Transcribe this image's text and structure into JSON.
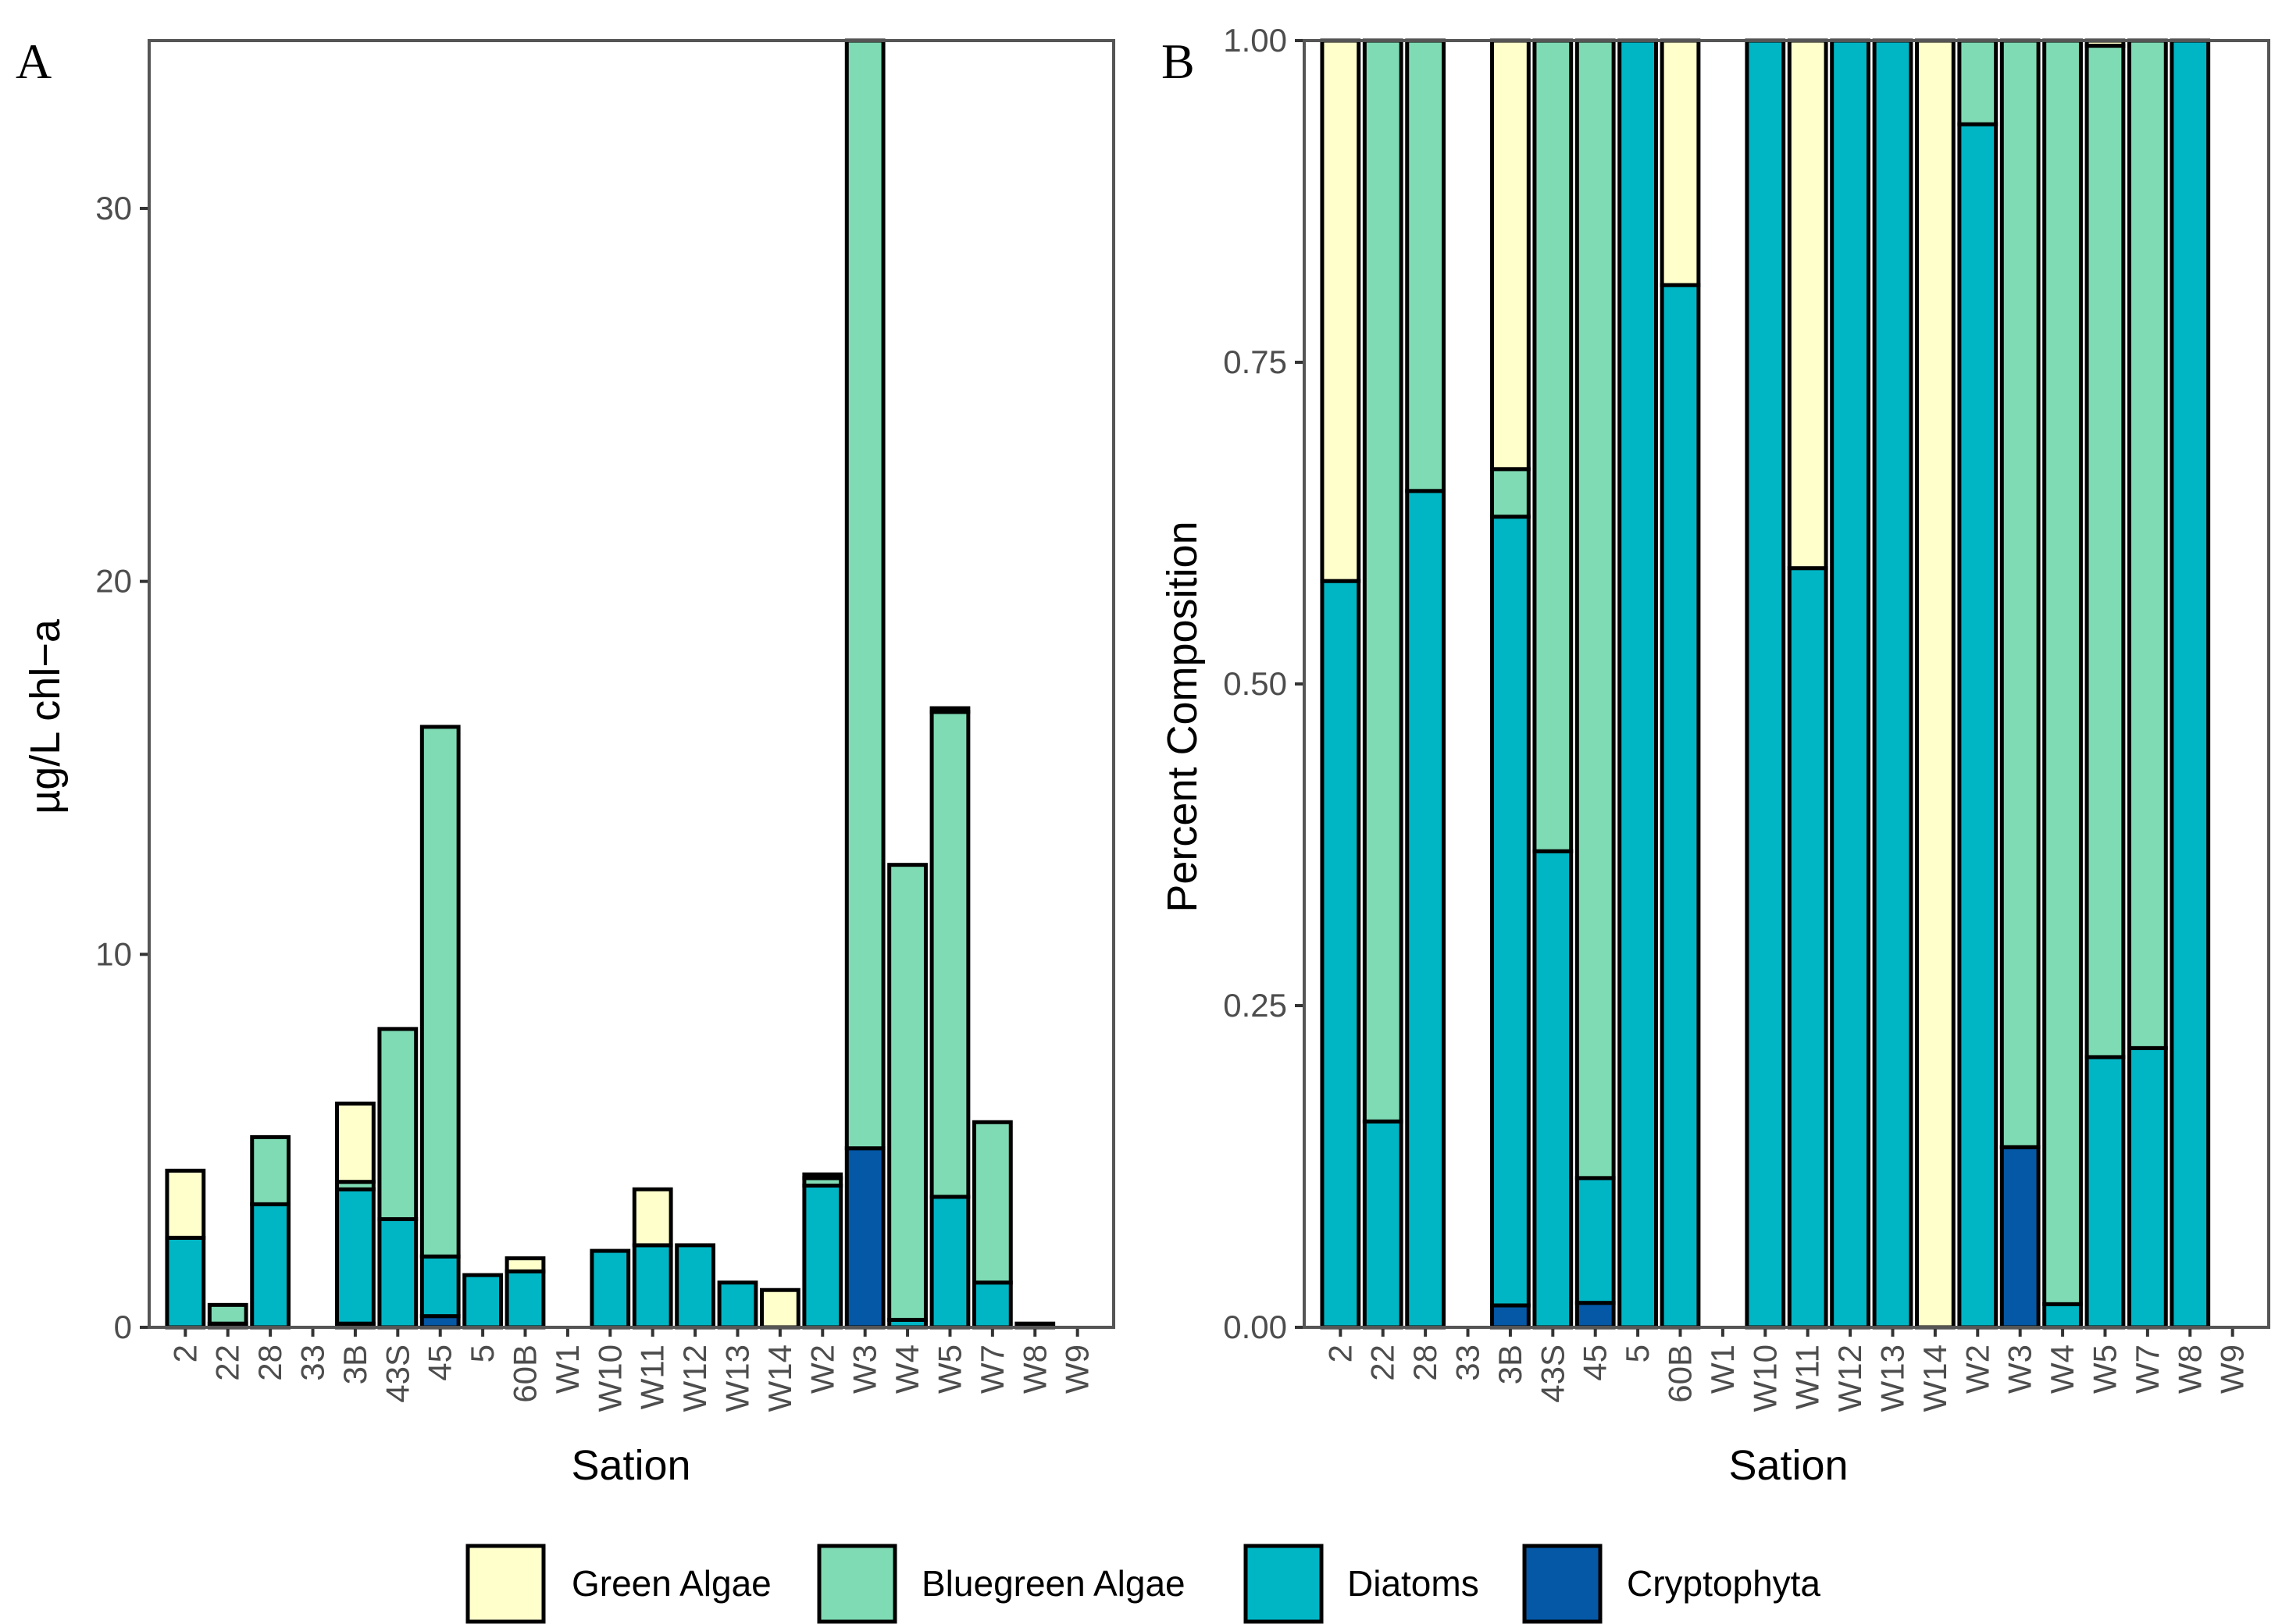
{
  "colors": {
    "Green Algae": "#ffffcc",
    "Bluegreen Algae": "#7fdbb4",
    "Diatoms": "#00b6c5",
    "Cryptophyta": "#0458a6",
    "stroke": "#000000",
    "panel_border": "#555555",
    "tick_text": "#4d4d4d"
  },
  "legend": {
    "items": [
      "Green Algae",
      "Bluegreen Algae",
      "Diatoms",
      "Cryptophyta"
    ],
    "position": "bottom"
  },
  "chart_data": [
    {
      "type": "bar",
      "stacked": true,
      "panel": "A",
      "xlabel": "Sation",
      "ylabel": "µg/L chl−a",
      "ylim": [
        0,
        34.5
      ],
      "yticks": [
        0,
        10,
        20,
        30
      ],
      "ytick_labels": [
        "0",
        "10",
        "20",
        "30"
      ],
      "categories": [
        "2",
        "22",
        "28",
        "33",
        "3B",
        "43S",
        "45",
        "5",
        "60B",
        "W1",
        "W10",
        "W11",
        "W12",
        "W13",
        "W14",
        "W2",
        "W3",
        "W4",
        "W5",
        "W7",
        "W8",
        "W9"
      ],
      "series": [
        {
          "name": "Cryptophyta",
          "values": [
            0,
            0,
            0,
            0,
            0.1,
            0,
            0.3,
            0,
            0,
            0,
            0,
            0,
            0,
            0,
            0,
            0,
            4.8,
            0,
            0,
            0,
            0,
            0
          ]
        },
        {
          "name": "Diatoms",
          "values": [
            2.4,
            0.1,
            3.3,
            0,
            3.6,
            2.9,
            1.6,
            1.4,
            1.5,
            0,
            2.05,
            2.2,
            2.2,
            1.2,
            0,
            3.8,
            0,
            0.2,
            3.5,
            1.2,
            0,
            0
          ]
        },
        {
          "name": "Bluegreen Algae",
          "values": [
            0,
            0.5,
            1.8,
            0,
            0.2,
            5.1,
            14.2,
            0,
            0,
            0,
            0,
            0,
            0,
            0,
            0,
            0.2,
            29.9,
            12.2,
            13,
            4.3,
            0.1,
            0
          ]
        },
        {
          "name": "Green Algae",
          "values": [
            1.8,
            0,
            0,
            0,
            2.1,
            0,
            0,
            0,
            0.35,
            0,
            0,
            1.5,
            0,
            0,
            1,
            0.1,
            0,
            0,
            0.1,
            0,
            0,
            0
          ]
        }
      ]
    },
    {
      "type": "bar",
      "stacked": true,
      "panel": "B",
      "xlabel": "Sation",
      "ylabel": "Percent Composition",
      "ylim": [
        0,
        1
      ],
      "yticks": [
        0,
        0.25,
        0.5,
        0.75,
        1
      ],
      "ytick_labels": [
        "0.00",
        "0.25",
        "0.50",
        "0.75",
        "1.00"
      ],
      "categories": [
        "2",
        "22",
        "28",
        "33",
        "3B",
        "43S",
        "45",
        "5",
        "60B",
        "W1",
        "W10",
        "W11",
        "W12",
        "W13",
        "W14",
        "W2",
        "W3",
        "W4",
        "W5",
        "W7",
        "W8",
        "W9"
      ],
      "series": [
        {
          "name": "Cryptophyta",
          "values": [
            0,
            0,
            0,
            0,
            0.017,
            0,
            0.019,
            0,
            0,
            0,
            0,
            0,
            0,
            0,
            0,
            0,
            0.14,
            0,
            0,
            0,
            0,
            0
          ]
        },
        {
          "name": "Diatoms",
          "values": [
            0.58,
            0.16,
            0.65,
            0,
            0.613,
            0.37,
            0.097,
            1.0,
            0.81,
            0,
            1.0,
            0.59,
            1.0,
            1.0,
            0,
            0.935,
            0,
            0.018,
            0.21,
            0.217,
            1.0,
            0
          ]
        },
        {
          "name": "Bluegreen Algae",
          "values": [
            0,
            0.84,
            0.35,
            0,
            0.037,
            0.63,
            0.884,
            0,
            0,
            0,
            0,
            0,
            0,
            0,
            0,
            0.065,
            0.86,
            0.982,
            0.786,
            0.783,
            0,
            0
          ]
        },
        {
          "name": "Green Algae",
          "values": [
            0.42,
            0,
            0,
            0,
            0.333,
            0,
            0,
            0,
            0.19,
            0,
            0,
            0.41,
            0,
            0,
            1.0,
            0,
            0,
            0,
            0.004,
            0,
            0,
            0
          ]
        }
      ]
    }
  ]
}
